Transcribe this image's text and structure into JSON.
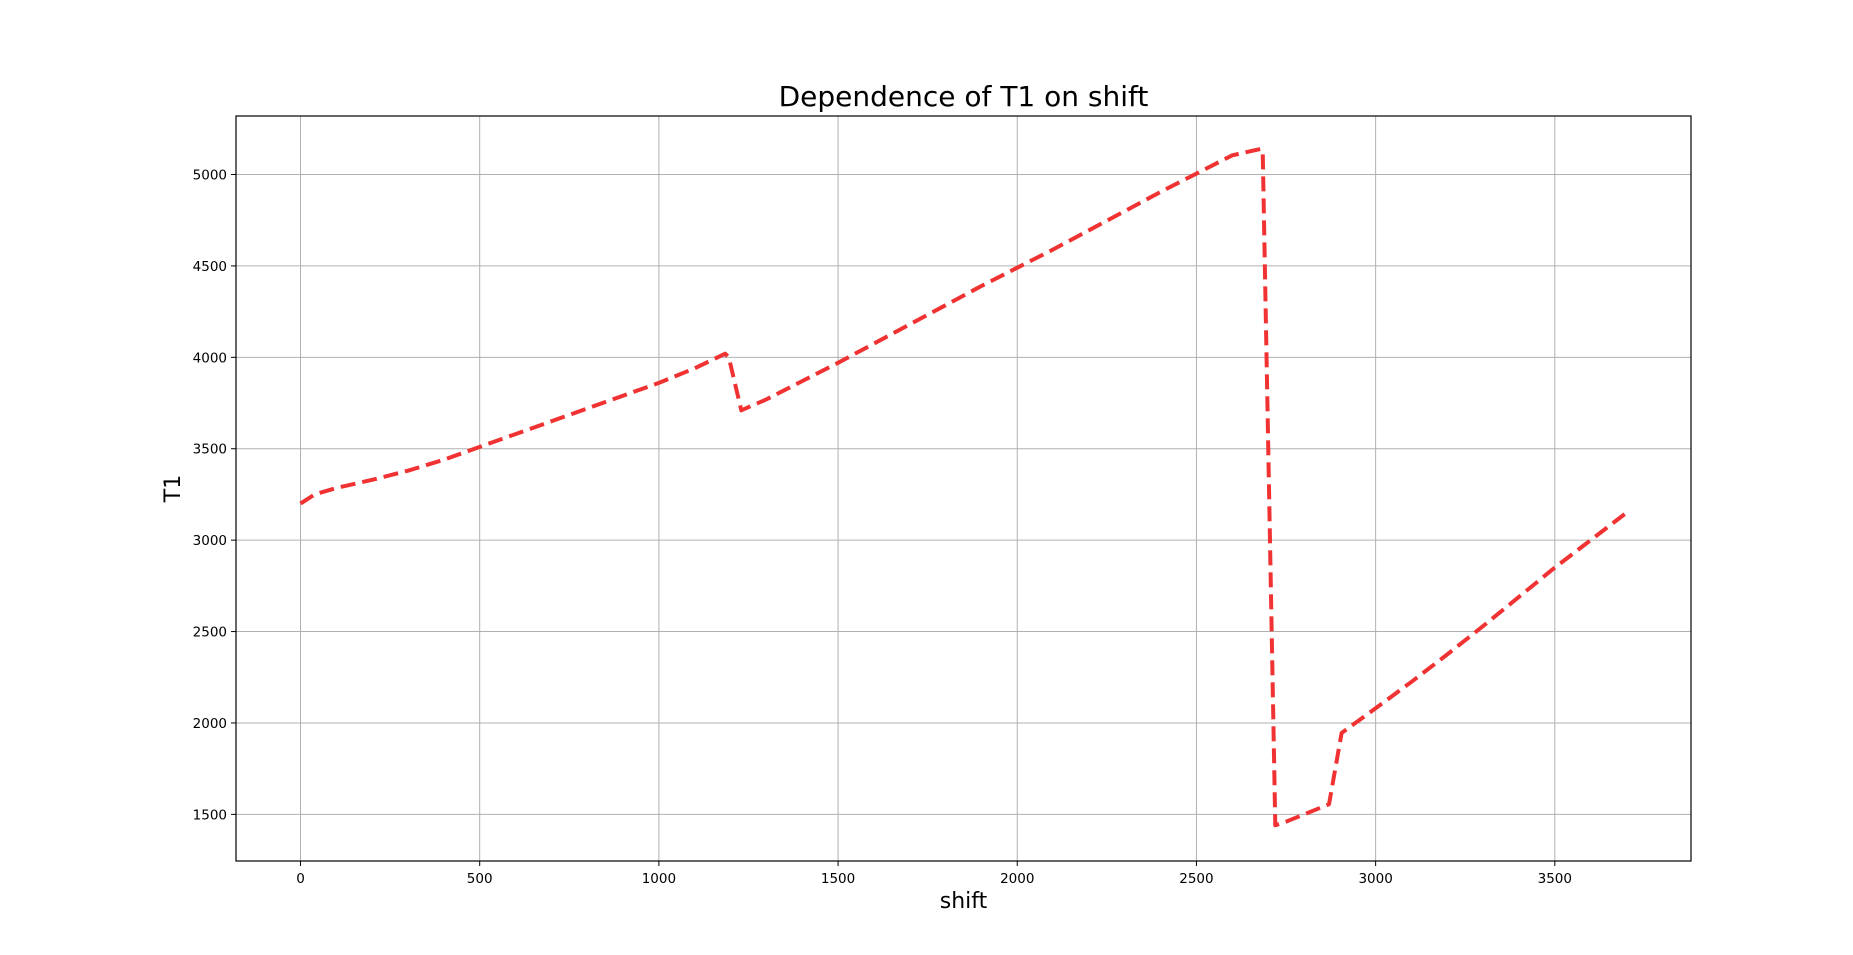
{
  "chart_data": {
    "type": "line",
    "title": "Dependence of T1 on shift",
    "xlabel": "shift",
    "ylabel": "T1",
    "xlim": [
      -180,
      3880
    ],
    "ylim": [
      1245,
      5320
    ],
    "xticks": [
      0,
      500,
      1000,
      1500,
      2000,
      2500,
      3000,
      3500
    ],
    "yticks": [
      1500,
      2000,
      2500,
      3000,
      3500,
      4000,
      4500,
      5000
    ],
    "grid": true,
    "series": [
      {
        "color": "#f03232",
        "linestyle": "dashed",
        "x": [
          0,
          40,
          100,
          200,
          300,
          400,
          500,
          600,
          700,
          800,
          900,
          1000,
          1100,
          1185,
          1195,
          1230,
          1300,
          1400,
          1500,
          1600,
          1700,
          1800,
          1900,
          2000,
          2100,
          2200,
          2300,
          2400,
          2500,
          2600,
          2680,
          2685,
          2720,
          2750,
          2800,
          2870,
          2905,
          3000,
          3100,
          3200,
          3300,
          3400,
          3500,
          3600,
          3700
        ],
        "y": [
          3200,
          3250,
          3285,
          3330,
          3380,
          3440,
          3510,
          3580,
          3650,
          3720,
          3790,
          3860,
          3940,
          4020,
          4000,
          3710,
          3770,
          3870,
          3970,
          4075,
          4180,
          4285,
          4390,
          4490,
          4590,
          4695,
          4800,
          4905,
          5005,
          5105,
          5140,
          5130,
          1440,
          1460,
          1500,
          1555,
          1945,
          2080,
          2225,
          2375,
          2530,
          2690,
          2850,
          3000,
          3150
        ]
      }
    ]
  }
}
